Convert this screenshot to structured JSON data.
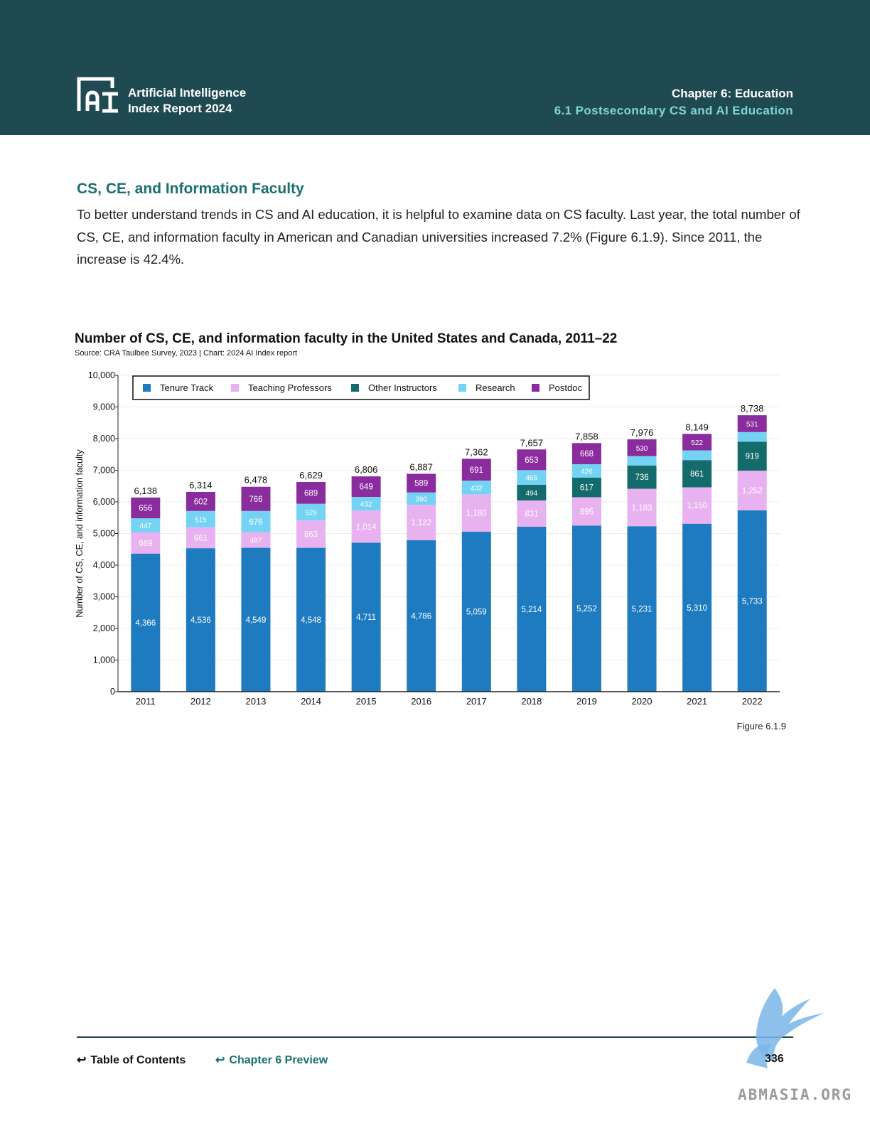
{
  "header": {
    "brand_line1": "Artificial Intelligence",
    "brand_line2": "Index Report 2024",
    "chapter": "Chapter 6: Education",
    "section": "6.1 Postsecondary CS and AI Education"
  },
  "content": {
    "section_title": "CS, CE, and Information Faculty",
    "paragraph": "To better understand trends in CS and AI education, it is helpful to examine data on CS faculty. Last year, the total number of CS, CE, and information faculty in American and Canadian universities increased 7.2% (Figure 6.1.9). Since 2011, the increase is 42.4%."
  },
  "figure": {
    "title": "Number of CS, CE, and information faculty in the United States and Canada, 2011–22",
    "source": "Source: CRA Taulbee Survey, 2023 | Chart: 2024 AI Index report",
    "label": "Figure 6.1.9"
  },
  "chart_data": {
    "type": "bar",
    "stacked": true,
    "title": "Number of CS, CE, and information faculty in the United States and Canada, 2011–22",
    "xlabel": "",
    "ylabel": "Number of CS, CE, and information faculty",
    "ylim": [
      0,
      10000
    ],
    "yticks": [
      0,
      1000,
      2000,
      3000,
      4000,
      5000,
      6000,
      7000,
      8000,
      9000,
      10000
    ],
    "ytick_labels": [
      "0",
      "1,000",
      "2,000",
      "3,000",
      "4,000",
      "5,000",
      "6,000",
      "7,000",
      "8,000",
      "9,000",
      "10,000"
    ],
    "grid": true,
    "legend_position": "top",
    "categories": [
      "2011",
      "2012",
      "2013",
      "2014",
      "2015",
      "2016",
      "2017",
      "2018",
      "2019",
      "2020",
      "2021",
      "2022"
    ],
    "series": [
      {
        "name": "Tenure Track",
        "color": "#1f7bbf",
        "label_color": "#ffffff",
        "values": [
          4366,
          4536,
          4549,
          4548,
          4711,
          4786,
          5059,
          5214,
          5252,
          5231,
          5310,
          5733
        ],
        "labels": [
          "4,366",
          "4,536",
          "4,549",
          "4,548",
          "4,711",
          "4,786",
          "5,059",
          "5,214",
          "5,252",
          "5,231",
          "5,310",
          "5,733"
        ]
      },
      {
        "name": "Teaching Professors",
        "color": "#e8b2f0",
        "label_color": "#ffffff",
        "values": [
          669,
          661,
          487,
          863,
          1014,
          1122,
          1180,
          831,
          895,
          1183,
          1150,
          1252
        ],
        "labels": [
          "669",
          "661",
          "487",
          "863",
          "1,014",
          "1,122",
          "1,180",
          "831",
          "895",
          "1,183",
          "1,150",
          "1,252"
        ]
      },
      {
        "name": "Other Instructors",
        "color": "#136b6b",
        "label_color": "#ffffff",
        "values": [
          0,
          0,
          0,
          0,
          0,
          0,
          0,
          494,
          617,
          736,
          861,
          919
        ],
        "labels": [
          "",
          "",
          "",
          "",
          "",
          "",
          "",
          "494",
          "617",
          "736",
          "861",
          "919"
        ]
      },
      {
        "name": "Research",
        "color": "#74d3f2",
        "label_color": "#ffffff",
        "values": [
          447,
          515,
          676,
          529,
          432,
          390,
          432,
          465,
          426,
          296,
          306,
          303
        ],
        "labels": [
          "447",
          "515",
          "676",
          "529",
          "432",
          "390",
          "432",
          "465",
          "426",
          "",
          "",
          ""
        ]
      },
      {
        "name": "Postdoc",
        "color": "#8a2b9e",
        "label_color": "#ffffff",
        "values": [
          656,
          602,
          766,
          689,
          649,
          589,
          691,
          653,
          668,
          530,
          522,
          531
        ],
        "labels": [
          "656",
          "602",
          "766",
          "689",
          "649",
          "589",
          "691",
          "653",
          "668",
          "530",
          "522",
          "531"
        ]
      }
    ],
    "totals": [
      "6,138",
      "6,314",
      "6,478",
      "6,629",
      "6,806",
      "6,887",
      "7,362",
      "7,657",
      "7,858",
      "7,976",
      "8,149",
      "8,738"
    ]
  },
  "footer": {
    "toc": "Table of Contents",
    "chapter_preview": "Chapter 6 Preview",
    "page": "336",
    "watermark": "ABMASIA.ORG"
  }
}
